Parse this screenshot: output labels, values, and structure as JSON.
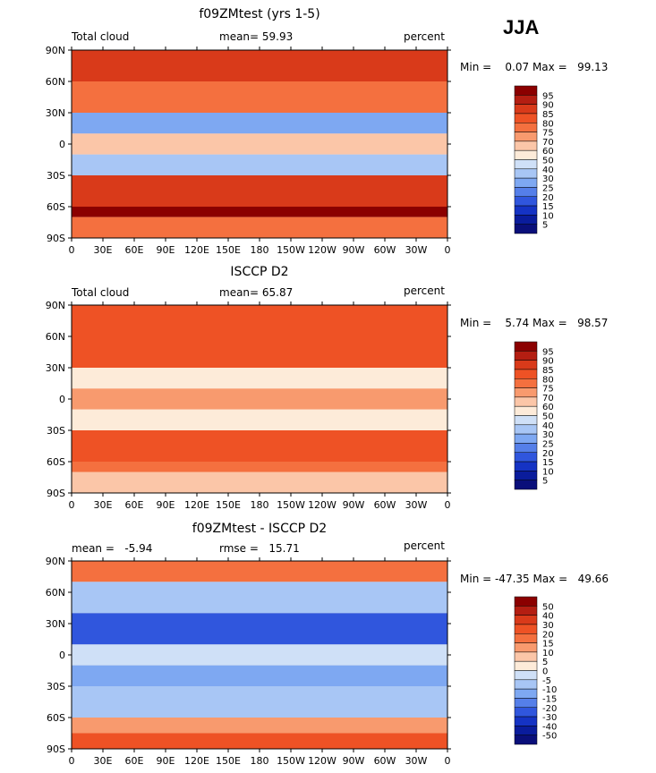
{
  "season": "JJA",
  "panels": [
    {
      "title": "f09ZMtest (yrs 1-5)",
      "left_label": "Total cloud",
      "center_label": "mean=  59.93",
      "right_label": "percent",
      "minmax": "Min =    0.07 Max =   99.13"
    },
    {
      "title": "ISCCP D2",
      "left_label": "Total cloud",
      "center_label": "mean=  65.87",
      "right_label": "percent",
      "minmax": "Min =    5.74 Max =   98.57"
    },
    {
      "title": "f09ZMtest - ISCCP D2",
      "left_label": "mean =   -5.94",
      "center_label": "rmse =   15.71",
      "right_label": "percent",
      "minmax": "Min = -47.35 Max =   49.66"
    }
  ],
  "chart_data": [
    {
      "type": "heatmap",
      "title": "f09ZMtest (yrs 1-5)",
      "variable": "Total cloud",
      "units": "percent",
      "mean": 59.93,
      "min": 0.07,
      "max": 99.13,
      "x_ticks": [
        "0",
        "30E",
        "60E",
        "90E",
        "120E",
        "150E",
        "180",
        "150W",
        "120W",
        "90W",
        "60W",
        "30W",
        "0"
      ],
      "y_ticks": [
        "90N",
        "60N",
        "30N",
        "0",
        "30S",
        "60S",
        "90S"
      ],
      "levels": [
        "95",
        "90",
        "85",
        "80",
        "75",
        "70",
        "60",
        "50",
        "40",
        "30",
        "25",
        "20",
        "15",
        "10",
        "5"
      ],
      "colors": [
        "#8b0000",
        "#b41e12",
        "#d93a1a",
        "#ee5225",
        "#f4703f",
        "#f89a6e",
        "#fbc6a8",
        "#fdebd9",
        "#cfe0f7",
        "#a8c6f5",
        "#7ea8f2",
        "#557fe9",
        "#3056dd",
        "#1533c4",
        "#0a1c9c",
        "#0a0f7a"
      ],
      "zones": [
        {
          "lat": [
            60,
            90
          ],
          "level": 85
        },
        {
          "lat": [
            30,
            60
          ],
          "level": 75
        },
        {
          "lat": [
            10,
            30
          ],
          "level": 25
        },
        {
          "lat": [
            -10,
            10
          ],
          "level": 65
        },
        {
          "lat": [
            -30,
            -10
          ],
          "level": 30
        },
        {
          "lat": [
            -60,
            -30
          ],
          "level": 85
        },
        {
          "lat": [
            -70,
            -60
          ],
          "level": 95
        },
        {
          "lat": [
            -90,
            -70
          ],
          "level": 75
        }
      ]
    },
    {
      "type": "heatmap",
      "title": "ISCCP D2",
      "variable": "Total cloud",
      "units": "percent",
      "mean": 65.87,
      "min": 5.74,
      "max": 98.57,
      "x_ticks": [
        "0",
        "30E",
        "60E",
        "90E",
        "120E",
        "150E",
        "180",
        "150W",
        "120W",
        "90W",
        "60W",
        "30W",
        "0"
      ],
      "y_ticks": [
        "90N",
        "60N",
        "30N",
        "0",
        "30S",
        "60S",
        "90S"
      ],
      "levels": [
        "95",
        "90",
        "85",
        "80",
        "75",
        "70",
        "60",
        "50",
        "40",
        "30",
        "25",
        "20",
        "15",
        "10",
        "5"
      ],
      "colors": [
        "#8b0000",
        "#b41e12",
        "#d93a1a",
        "#ee5225",
        "#f4703f",
        "#f89a6e",
        "#fbc6a8",
        "#fdebd9",
        "#cfe0f7",
        "#a8c6f5",
        "#7ea8f2",
        "#557fe9",
        "#3056dd",
        "#1533c4",
        "#0a1c9c",
        "#0a0f7a"
      ],
      "zones": [
        {
          "lat": [
            60,
            90
          ],
          "level": 80
        },
        {
          "lat": [
            30,
            60
          ],
          "level": 80
        },
        {
          "lat": [
            10,
            30
          ],
          "level": 55
        },
        {
          "lat": [
            -10,
            10
          ],
          "level": 70
        },
        {
          "lat": [
            -30,
            -10
          ],
          "level": 55
        },
        {
          "lat": [
            -60,
            -30
          ],
          "level": 80
        },
        {
          "lat": [
            -70,
            -60
          ],
          "level": 75
        },
        {
          "lat": [
            -90,
            -70
          ],
          "level": 60
        }
      ]
    },
    {
      "type": "heatmap",
      "title": "f09ZMtest - ISCCP D2",
      "units": "percent",
      "mean": -5.94,
      "rmse": 15.71,
      "min": -47.35,
      "max": 49.66,
      "x_ticks": [
        "0",
        "30E",
        "60E",
        "90E",
        "120E",
        "150E",
        "180",
        "150W",
        "120W",
        "90W",
        "60W",
        "30W",
        "0"
      ],
      "y_ticks": [
        "90N",
        "60N",
        "30N",
        "0",
        "30S",
        "60S",
        "90S"
      ],
      "levels": [
        "50",
        "40",
        "30",
        "20",
        "15",
        "10",
        "5",
        "0",
        "-5",
        "-10",
        "-15",
        "-20",
        "-30",
        "-40",
        "-50"
      ],
      "colors": [
        "#8b0000",
        "#b41e12",
        "#d93a1a",
        "#ee5225",
        "#f4703f",
        "#f89a6e",
        "#fbc6a8",
        "#fdebd9",
        "#cfe0f7",
        "#a8c6f5",
        "#7ea8f2",
        "#557fe9",
        "#3056dd",
        "#1533c4",
        "#0a1c9c",
        "#0a0f7a"
      ],
      "zones": [
        {
          "lat": [
            70,
            90
          ],
          "level": 15
        },
        {
          "lat": [
            40,
            70
          ],
          "level": -10
        },
        {
          "lat": [
            10,
            40
          ],
          "level": -25
        },
        {
          "lat": [
            -10,
            10
          ],
          "level": -5
        },
        {
          "lat": [
            -30,
            -10
          ],
          "level": -15
        },
        {
          "lat": [
            -60,
            -30
          ],
          "level": -10
        },
        {
          "lat": [
            -75,
            -60
          ],
          "level": 10
        },
        {
          "lat": [
            -90,
            -75
          ],
          "level": 25
        }
      ]
    }
  ]
}
